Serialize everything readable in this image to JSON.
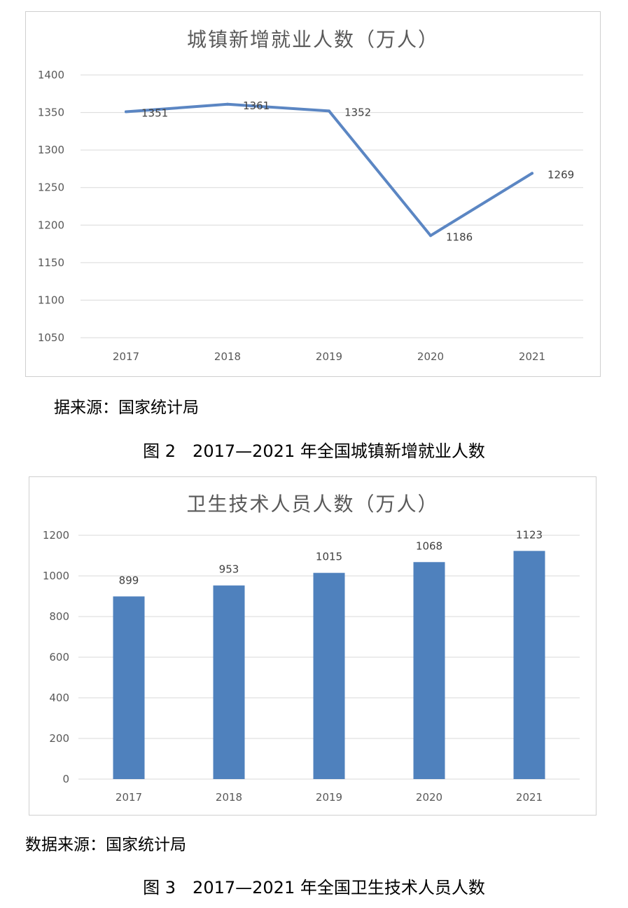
{
  "charts": {
    "line": {
      "source": "据来源：国家统计局",
      "caption": "图 2　2017—2021 年全国城镇新增就业人数"
    },
    "bar": {
      "source": "数据来源：国家统计局",
      "caption": "图 3　2017—2021 年全国卫生技术人员人数"
    }
  },
  "chart_data": [
    {
      "type": "line",
      "title": "城镇新增就业人数（万人）",
      "xlabel": "",
      "ylabel": "",
      "categories": [
        "2017",
        "2018",
        "2019",
        "2020",
        "2021"
      ],
      "values": [
        1351,
        1361,
        1352,
        1186,
        1269
      ],
      "ylim": [
        1050,
        1400
      ],
      "yticks": [
        1050,
        1100,
        1150,
        1200,
        1250,
        1300,
        1350,
        1400
      ],
      "grid": true,
      "legend": "none",
      "color": "#5b86c3"
    },
    {
      "type": "bar",
      "title": "卫生技术人员人数（万人）",
      "xlabel": "",
      "ylabel": "",
      "categories": [
        "2017",
        "2018",
        "2019",
        "2020",
        "2021"
      ],
      "values": [
        899,
        953,
        1015,
        1068,
        1123
      ],
      "ylim": [
        0,
        1200
      ],
      "yticks": [
        0,
        200,
        400,
        600,
        800,
        1000,
        1200
      ],
      "grid": true,
      "legend": "none",
      "color": "#4f81bd"
    }
  ]
}
